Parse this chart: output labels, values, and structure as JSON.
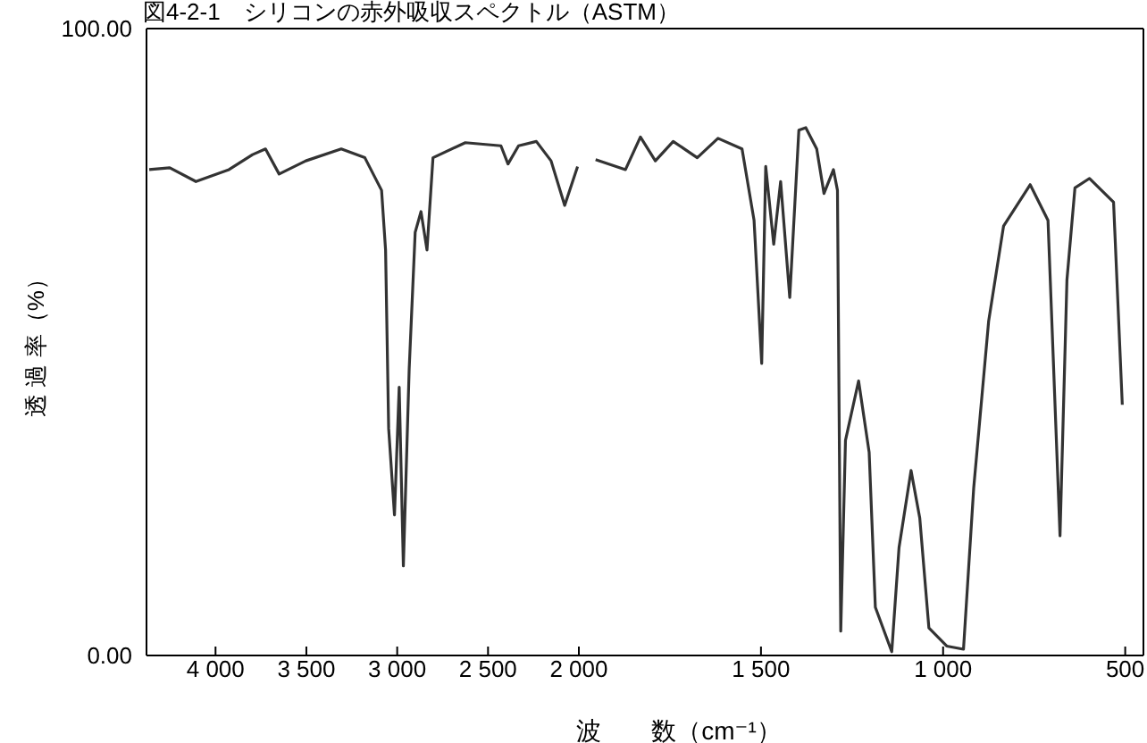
{
  "chart_data": [
    {
      "type": "line",
      "title": "図4-2-1　シリコンの赤外吸収スペクトル（ASTM）",
      "ylabel": "透 過 率（%）",
      "xlim": [
        4380,
        2000
      ],
      "ylim": [
        0,
        100
      ],
      "xticks": [
        {
          "value": 4000,
          "label": "4 000"
        },
        {
          "value": 3500,
          "label": "3 500"
        },
        {
          "value": 3000,
          "label": "3 000"
        },
        {
          "value": 2500,
          "label": "2 500"
        },
        {
          "value": 2000,
          "label": "2 000"
        }
      ],
      "yticks": [
        {
          "value": 0,
          "label": "0.00"
        },
        {
          "value": 100,
          "label": "100.00"
        }
      ],
      "marker": "none",
      "line_style": "solid",
      "series": [
        {
          "color": "#333333",
          "x": [
            4365,
            4252,
            4108,
            3926,
            3796,
            3725,
            3650,
            3503,
            3308,
            3178,
            3086,
            3064,
            3047,
            3015,
            2989,
            2966,
            2934,
            2901,
            2869,
            2836,
            2803,
            2625,
            2429,
            2390,
            2332,
            2234,
            2153,
            2078,
            2007
          ],
          "values": [
            77.5,
            77.8,
            75.6,
            77.5,
            79.9,
            80.8,
            76.8,
            78.9,
            80.8,
            79.4,
            74.2,
            64.7,
            36.2,
            22.4,
            42.8,
            14.3,
            45.7,
            67.5,
            70.8,
            64.7,
            79.4,
            81.8,
            81.3,
            78.4,
            81.3,
            82.0,
            78.9,
            71.8,
            78.0
          ]
        }
      ]
    },
    {
      "type": "line",
      "xlabel": "波　　数（cm⁻¹）",
      "xlim": [
        2000,
        450
      ],
      "ylim": [
        0,
        100
      ],
      "tick_labels": "x",
      "xticks": [
        {
          "value": 1500,
          "label": "1 500"
        },
        {
          "value": 1000,
          "label": "1 000"
        },
        500
      ],
      "marker": "none",
      "line_style": "solid",
      "series": [
        {
          "color": "#333333",
          "x": [
            1954,
            1872,
            1831,
            1790,
            1741,
            1675,
            1618,
            1552,
            1519,
            1498,
            1487,
            1465,
            1446,
            1421,
            1396,
            1377,
            1347,
            1327,
            1301,
            1290,
            1281,
            1268,
            1232,
            1203,
            1186,
            1141,
            1121,
            1088,
            1064,
            1039,
            990,
            944,
            916,
            875,
            834,
            761,
            712,
            679,
            660,
            638,
            598,
            532,
            508
          ],
          "values": [
            79.1,
            77.5,
            82.7,
            78.9,
            82.0,
            79.4,
            82.5,
            80.8,
            69.4,
            46.6,
            78.0,
            65.6,
            75.6,
            57.1,
            83.8,
            84.2,
            80.8,
            73.7,
            77.5,
            74.2,
            3.9,
            34.3,
            43.8,
            32.4,
            7.7,
            0.6,
            17.2,
            29.5,
            21.9,
            4.4,
            1.5,
            1.0,
            26.7,
            53.3,
            68.5,
            75.1,
            69.4,
            19.1,
            59.9,
            74.6,
            76.1,
            72.3,
            40.0
          ]
        }
      ]
    }
  ]
}
